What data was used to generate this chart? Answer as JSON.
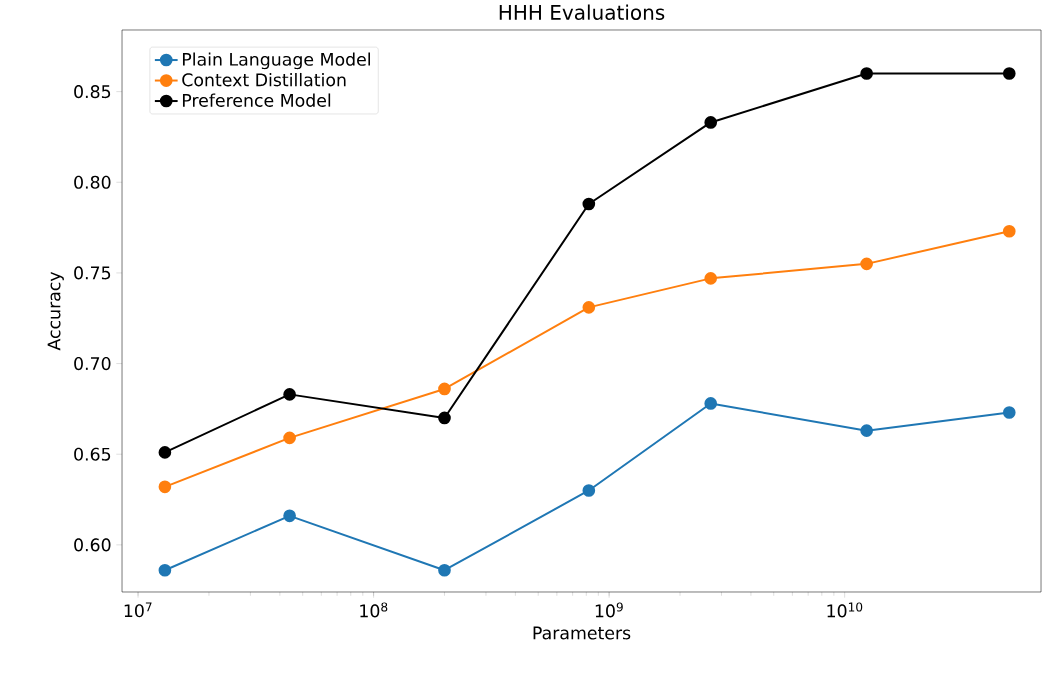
{
  "chart_data": {
    "type": "line",
    "title": "HHH Evaluations",
    "xlabel": "Parameters",
    "ylabel": "Accuracy",
    "log": "x",
    "legend": "top left",
    "marker": "circle",
    "line_style": "solid",
    "x": [
      13000000.0,
      44000000.0,
      200000000.0,
      820000000.0,
      2700000000.0,
      12400000000.0,
      50000000000.0
    ],
    "xlim": [
      8550000.0,
      68200000000.0
    ],
    "xticks": [
      {
        "value": 10000000.0,
        "label": "10$^{7}$"
      },
      {
        "value": 100000000.0,
        "label": "10$^{8}$"
      },
      {
        "value": 1000000000.0,
        "label": "10$^{9}$"
      },
      {
        "value": 10000000000.0,
        "label": "10$^{10}$"
      }
    ],
    "ylim": [
      0.574,
      0.884
    ],
    "yticks": [
      {
        "value": 0.6,
        "label": "0.60"
      },
      {
        "value": 0.65,
        "label": "0.65"
      },
      {
        "value": 0.7,
        "label": "0.70"
      },
      {
        "value": 0.75,
        "label": "0.75"
      },
      {
        "value": 0.8,
        "label": "0.80"
      },
      {
        "value": 0.85,
        "label": "0.85"
      }
    ],
    "series": [
      {
        "name": "Plain Language Model",
        "color": "#1f77b4",
        "values": [
          0.586,
          0.616,
          0.586,
          0.63,
          0.678,
          0.663,
          0.673
        ]
      },
      {
        "name": "Context Distillation",
        "color": "#ff7f0e",
        "values": [
          0.632,
          0.659,
          0.686,
          0.731,
          0.747,
          0.755,
          0.773
        ]
      },
      {
        "name": "Preference Model",
        "color": "#000000",
        "values": [
          0.651,
          0.683,
          0.67,
          0.788,
          0.833,
          0.86,
          0.86
        ]
      }
    ]
  }
}
